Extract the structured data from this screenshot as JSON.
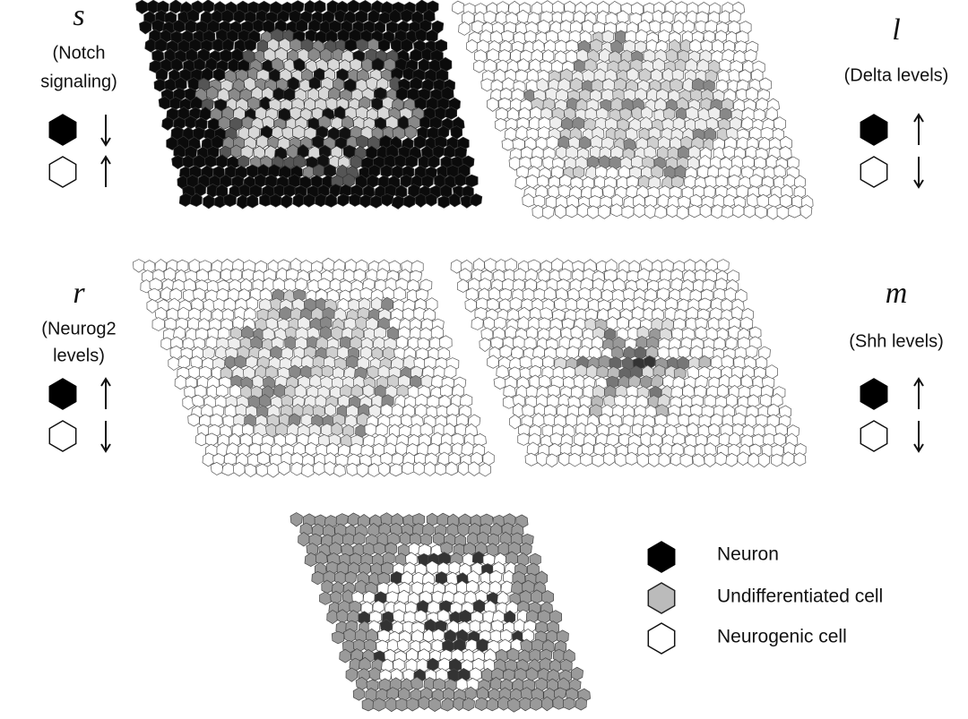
{
  "panels": [
    {
      "symbol": "s",
      "description": [
        "(Notch",
        "signaling)"
      ]
    },
    {
      "symbol": "l",
      "description": [
        "(Delta levels)"
      ]
    },
    {
      "symbol": "r",
      "description": [
        "(Neurog2",
        "levels)"
      ]
    },
    {
      "symbol": "m",
      "description": [
        "(Shh levels)"
      ]
    }
  ],
  "legend": [
    "Neuron",
    "Undifferentiated cell",
    "Neurogenic cell"
  ]
}
